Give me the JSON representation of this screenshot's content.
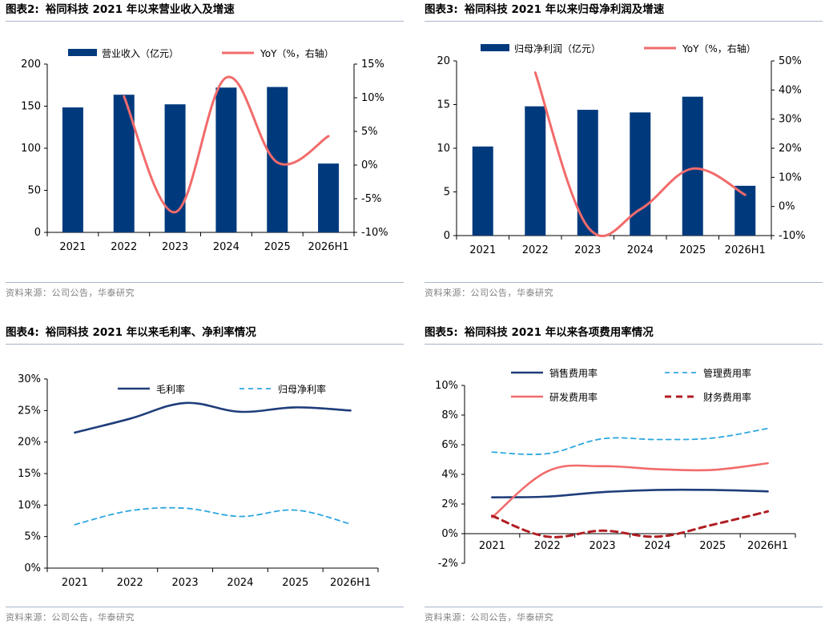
{
  "panels": [
    {
      "id": "p1",
      "title_num": "图表2:",
      "title": "裕同科技 2021 年以来营业收入及增速",
      "source": "资料来源：公司公告，华泰研究",
      "chart_data": {
        "type": "bar",
        "categories": [
          "2021",
          "2022",
          "2023",
          "2024",
          "2025",
          "2026H1"
        ],
        "series": [
          {
            "name": "营业收入（亿元）",
            "type": "bar",
            "axis": "left",
            "color": "#003a7d",
            "values": [
              148.5,
              163.6,
              152.2,
              172.1,
              172.8,
              81.8
            ]
          },
          {
            "name": "YoY（%，右轴）",
            "type": "line",
            "axis": "right",
            "color": "#f26b6b",
            "style": "solid",
            "values": [
              null,
              10.2,
              -7.0,
              13.0,
              0.4,
              4.3
            ]
          }
        ],
        "y_left": {
          "min": 0,
          "max": 200,
          "ticks": [
            0,
            50,
            100,
            150,
            200
          ],
          "labels": [
            "0",
            "50",
            "100",
            "150",
            "200"
          ]
        },
        "y_right": {
          "min": -10,
          "max": 15,
          "ticks": [
            -10,
            -5,
            0,
            5,
            10,
            15
          ],
          "labels": [
            "-10%",
            "-5%",
            "0%",
            "5%",
            "10%",
            "15%"
          ]
        },
        "grid": false,
        "legend_position": "top"
      }
    },
    {
      "id": "p2",
      "title_num": "图表3:",
      "title": "裕同科技 2021 年以来归母净利润及增速",
      "source": "资料来源：公司公告，华泰研究",
      "chart_data": {
        "type": "bar",
        "categories": [
          "2021",
          "2022",
          "2023",
          "2024",
          "2025",
          "2026H1"
        ],
        "series": [
          {
            "name": "归母净利润（亿元）",
            "type": "bar",
            "axis": "left",
            "color": "#003a7d",
            "values": [
              10.2,
              14.8,
              14.4,
              14.1,
              15.9,
              5.7
            ]
          },
          {
            "name": "YoY（%，右轴）",
            "type": "line",
            "axis": "right",
            "color": "#f26b6b",
            "style": "solid",
            "values": [
              null,
              46.0,
              -7.0,
              -1.0,
              13.0,
              4.0
            ]
          }
        ],
        "y_left": {
          "min": 0,
          "max": 20,
          "ticks": [
            0,
            5,
            10,
            15,
            20
          ],
          "labels": [
            "0",
            "5",
            "10",
            "15",
            "20"
          ]
        },
        "y_right": {
          "min": -10,
          "max": 50,
          "ticks": [
            -10,
            0,
            10,
            20,
            30,
            40,
            50
          ],
          "labels": [
            "-10%",
            "0%",
            "10%",
            "20%",
            "30%",
            "40%",
            "50%"
          ]
        },
        "grid": false,
        "legend_position": "top"
      }
    },
    {
      "id": "p3",
      "title_num": "图表4:",
      "title": "裕同科技 2021 年以来毛利率、净利率情况",
      "source": "资料来源：公司公告，华泰研究",
      "chart_data": {
        "type": "line",
        "categories": [
          "2021",
          "2022",
          "2023",
          "2024",
          "2025",
          "2026H1"
        ],
        "series": [
          {
            "name": "毛利率",
            "axis": "left",
            "color": "#1f3d7a",
            "style": "solid",
            "values": [
              21.5,
              23.7,
              26.2,
              24.8,
              25.5,
              25.0
            ]
          },
          {
            "name": "归母净利率",
            "axis": "left",
            "color": "#2ea7e0",
            "style": "dashed",
            "values": [
              6.9,
              9.1,
              9.5,
              8.2,
              9.2,
              7.0
            ]
          }
        ],
        "y_left": {
          "min": 0,
          "max": 30,
          "ticks": [
            0,
            5,
            10,
            15,
            20,
            25,
            30
          ],
          "labels": [
            "0%",
            "5%",
            "10%",
            "15%",
            "20%",
            "25%",
            "30%"
          ]
        },
        "grid": false,
        "legend_position": "top"
      }
    },
    {
      "id": "p4",
      "title_num": "图表5:",
      "title": "裕同科技 2021 年以来各项费用率情况",
      "source": "资料来源：公司公告，华泰研究",
      "chart_data": {
        "type": "line",
        "categories": [
          "2021",
          "2022",
          "2023",
          "2024",
          "2025",
          "2026H1"
        ],
        "series": [
          {
            "name": "销售费用率",
            "axis": "left",
            "color": "#1f3d7a",
            "style": "solid",
            "values": [
              2.45,
              2.5,
              2.8,
              2.95,
              2.95,
              2.85
            ]
          },
          {
            "name": "管理费用率",
            "axis": "left",
            "color": "#2ea7e0",
            "style": "dashed",
            "values": [
              5.5,
              5.4,
              6.4,
              6.35,
              6.45,
              7.1
            ]
          },
          {
            "name": "研发费用率",
            "axis": "left",
            "color": "#f26b6b",
            "style": "solid",
            "values": [
              1.1,
              4.2,
              4.55,
              4.35,
              4.3,
              4.75
            ]
          },
          {
            "name": "财务费用率",
            "axis": "left",
            "color": "#b01e23",
            "style": "bold-dashed",
            "values": [
              1.2,
              -0.2,
              0.2,
              -0.2,
              0.6,
              1.5
            ]
          }
        ],
        "y_left": {
          "min": -2,
          "max": 10,
          "ticks": [
            -2,
            0,
            2,
            4,
            6,
            8,
            10
          ],
          "labels": [
            "-2%",
            "0%",
            "2%",
            "4%",
            "6%",
            "8%",
            "10%"
          ]
        },
        "grid": false,
        "legend_position": "top"
      }
    }
  ]
}
